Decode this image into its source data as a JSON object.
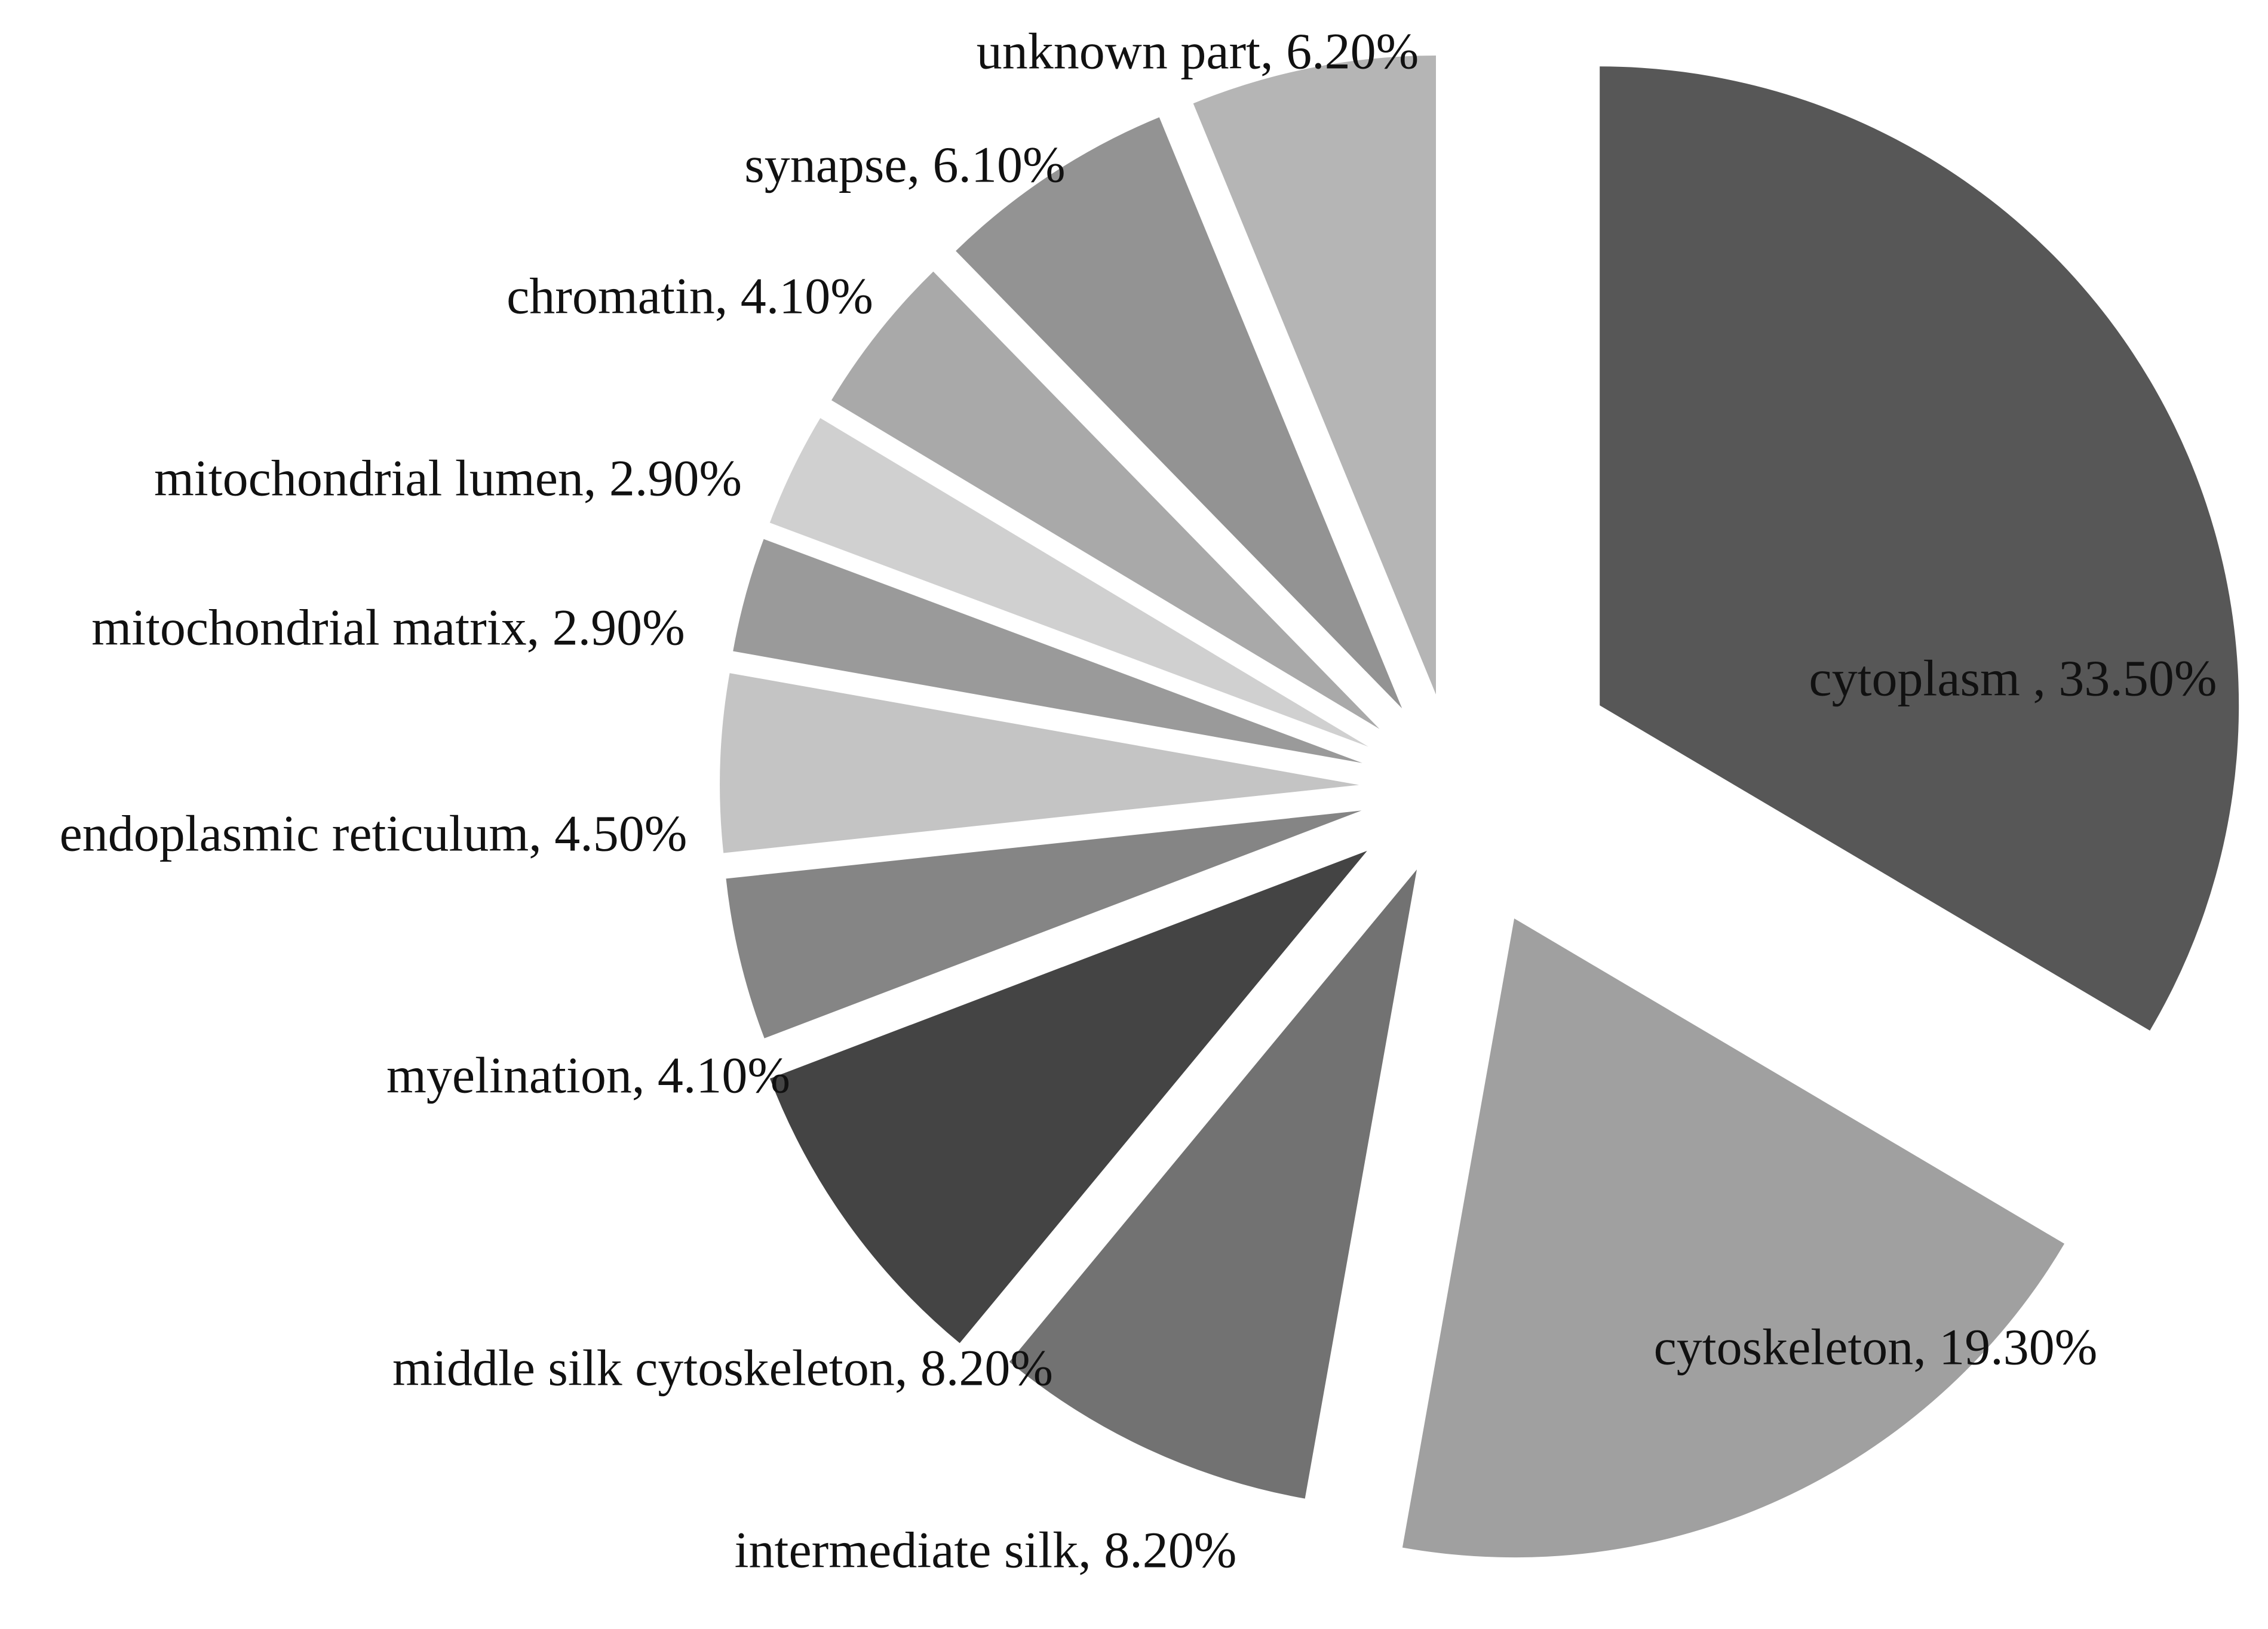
{
  "chart_data": {
    "type": "pie",
    "title": "",
    "exploded": true,
    "slices": [
      {
        "name": "cytoplasm",
        "label": "cytoplasm , 33.50%",
        "value": 33.5,
        "color": "#575757"
      },
      {
        "name": "cytoskeleton",
        "label": "cytoskeleton, 19.30%",
        "value": 19.3,
        "color": "#a0a0a0"
      },
      {
        "name": "intermediate silk",
        "label": "intermediate silk, 8.20%",
        "value": 8.2,
        "color": "#727272"
      },
      {
        "name": "middle silk cytoskeleton",
        "label": "middle silk cytoskeleton, 8.20%",
        "value": 8.2,
        "color": "#444444"
      },
      {
        "name": "myelination",
        "label": "myelination, 4.10%",
        "value": 4.1,
        "color": "#858585"
      },
      {
        "name": "endoplasmic reticulum",
        "label": "endoplasmic reticulum, 4.50%",
        "value": 4.5,
        "color": "#c4c4c4"
      },
      {
        "name": "mitochondrial matrix",
        "label": "mitochondrial matrix, 2.90%",
        "value": 2.9,
        "color": "#9a9a9a"
      },
      {
        "name": "mitochondrial lumen",
        "label": "mitochondrial lumen, 2.90%",
        "value": 2.9,
        "color": "#d0d0d0"
      },
      {
        "name": "chromatin",
        "label": "chromatin, 4.10%",
        "value": 4.1,
        "color": "#a9a9a9"
      },
      {
        "name": "synapse",
        "label": "synapse, 6.10%",
        "value": 6.1,
        "color": "#939393"
      },
      {
        "name": "unknown part",
        "label": "unknown part, 6.20%",
        "value": 6.2,
        "color": "#b5b5b5"
      }
    ]
  }
}
